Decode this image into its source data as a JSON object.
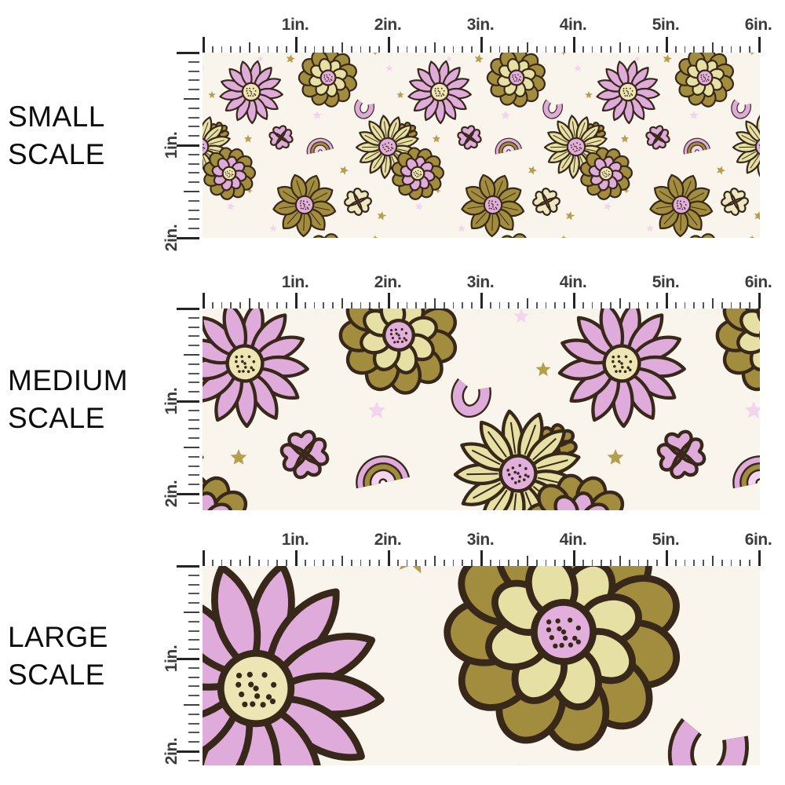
{
  "page": {
    "background": "#ffffff"
  },
  "sections": [
    {
      "id": "small",
      "label": "SMALL SCALE"
    },
    {
      "id": "medium",
      "label": "MEDIUM SCALE"
    },
    {
      "id": "large",
      "label": "LARGE SCALE"
    }
  ],
  "ruler": {
    "unit": "in.",
    "horizontal_labels": [
      "1in.",
      "2in.",
      "3in.",
      "4in.",
      "5in.",
      "6in."
    ],
    "vertical_labels": [
      "1in.",
      "2in."
    ],
    "tick_color": "#565656",
    "mid_tick_color": "#3f3f3f",
    "major_tick_color": "#242424",
    "label_color": "#3c3c3c"
  },
  "pattern": {
    "description": "retro floral print with daisies, mums, four-leaf clovers, stars, rainbows and horseshoes",
    "scales": {
      "small": 1,
      "medium": 2,
      "large": 4
    },
    "colors": {
      "background": "#FAF5EC",
      "outline": "#38281A",
      "olive": "#A28C3E",
      "olive_deep": "#94803A",
      "cream_petal": "#E7E0A4",
      "pale_leaf": "#EDE8C2",
      "pink": "#DFABDB",
      "pink_light": "#F3D4EE",
      "gold": "#B59F4A",
      "center_cream": "#EDE5B4",
      "center_pink": "#E2AFDD"
    }
  }
}
